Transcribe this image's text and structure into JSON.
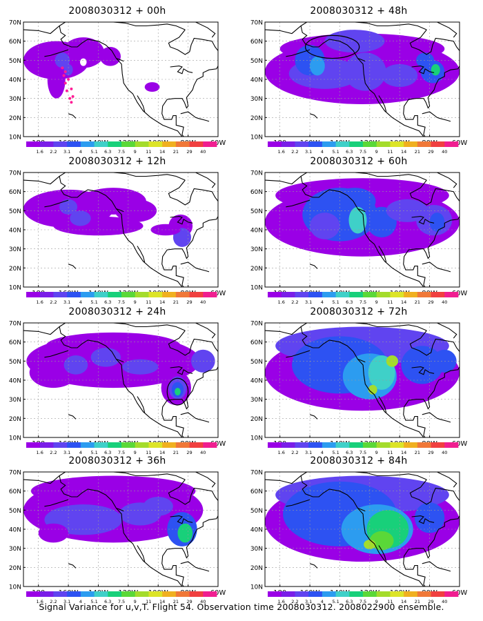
{
  "panels": [
    {
      "title": "2008030312 + 00h"
    },
    {
      "title": "2008030312 + 48h"
    },
    {
      "title": "2008030312 + 12h"
    },
    {
      "title": "2008030312 + 60h"
    },
    {
      "title": "2008030312 + 24h"
    },
    {
      "title": "2008030312 + 72h"
    },
    {
      "title": "2008030312 + 36h"
    },
    {
      "title": "2008030312 + 84h"
    }
  ],
  "axes": {
    "lat_labels": [
      "70N",
      "60N",
      "50N",
      "40N",
      "30N",
      "20N",
      "10N"
    ],
    "lon_labels": [
      "180",
      "160W",
      "140W",
      "120W",
      "100W",
      "80W",
      "60W"
    ],
    "lat_range": [
      10,
      70
    ],
    "lon_range": [
      -190,
      -60
    ],
    "grid": true
  },
  "colorbar": {
    "labels": [
      "1.6",
      "2.2",
      "3.1",
      "4",
      "5.1",
      "6.3",
      "7.5",
      "9",
      "11",
      "14",
      "21",
      "29",
      "40"
    ],
    "colors": [
      "#9a00e6",
      "#7a1ee8",
      "#6044f0",
      "#2d52f2",
      "#2c9cf0",
      "#3fd0c8",
      "#18d07a",
      "#5ad838",
      "#a4dc2c",
      "#dce428",
      "#f0b020",
      "#f07838",
      "#f04040",
      "#f01e90"
    ]
  },
  "footer": "Signal Variance for u,v,T. Flight 54. Observation time 2008030312. 2008022900 ensemble."
}
